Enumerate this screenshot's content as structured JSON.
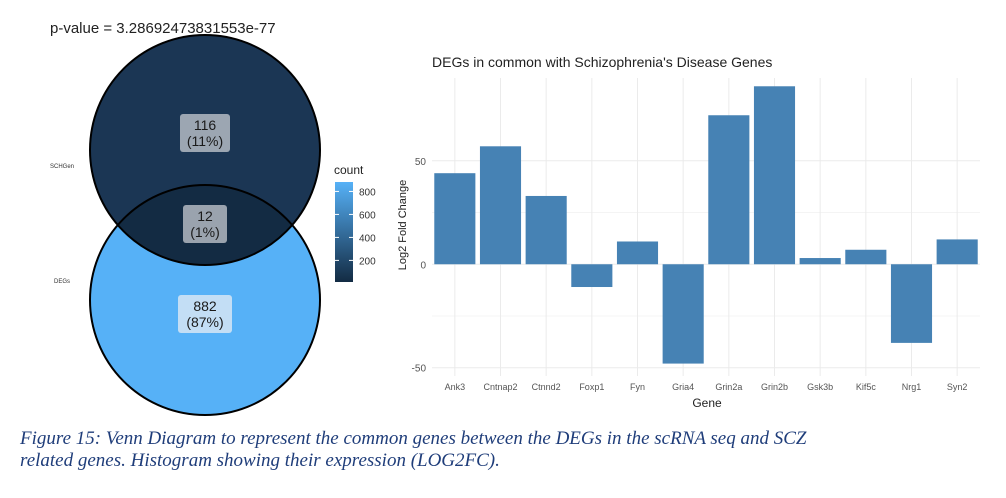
{
  "venn": {
    "pvalue_label": "p-value = 3.28692473831553e-77",
    "set_a_label": "SCHGen",
    "set_b_label": "DEGs",
    "regions": [
      {
        "name": "schgen-only",
        "count": "116",
        "pct": "(11%)",
        "value": 116,
        "color": "#1b3654"
      },
      {
        "name": "intersection",
        "count": "12",
        "pct": "(1%)",
        "value": 12,
        "color": "#132b43"
      },
      {
        "name": "degs-only",
        "count": "882",
        "pct": "(87%)",
        "value": 882,
        "color": "#56b1f7"
      }
    ],
    "legend": {
      "title": "count",
      "ticks": [
        "800",
        "600",
        "400",
        "200"
      ],
      "tick_values": [
        800,
        600,
        400,
        200
      ],
      "range": [
        12,
        882
      ],
      "color_low": "#132b43",
      "color_high": "#56b1f7"
    }
  },
  "chart_data": {
    "type": "bar",
    "title": "DEGs in common with Schizophrenia's Disease Genes",
    "xlabel": "Gene",
    "ylabel": "Log2 Fold Change",
    "categories": [
      "Ank3",
      "Cntnap2",
      "Ctnnd2",
      "Foxp1",
      "Fyn",
      "Gria4",
      "Grin2a",
      "Grin2b",
      "Gsk3b",
      "Kif5c",
      "Nrg1",
      "Syn2"
    ],
    "values": [
      44,
      57,
      33,
      -11,
      11,
      -48,
      72,
      86,
      3,
      7,
      -38,
      12
    ],
    "yticks": [
      "50",
      "0",
      "-50"
    ],
    "ytick_values": [
      50,
      0,
      -50
    ],
    "ylim": [
      -54,
      90
    ],
    "bar_color": "#4682b4",
    "grid": true
  },
  "caption": {
    "line1": "Figure 15: Venn Diagram to represent the common genes between the DEGs in the scRNA seq and SCZ",
    "line2": "related genes. Histogram showing their expression (LOG2FC)."
  }
}
